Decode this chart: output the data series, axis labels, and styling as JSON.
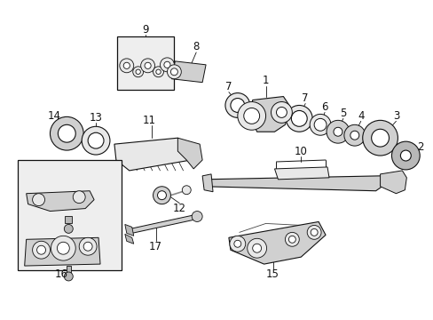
{
  "bg_color": "#ffffff",
  "fig_width": 4.89,
  "fig_height": 3.6,
  "dpi": 100,
  "label_fs": 8.5,
  "line_color": "#111111",
  "fill_light": "#e8e8e8",
  "fill_mid": "#d0d0d0",
  "fill_dark": "#b8b8b8",
  "box_fill": "#eeeeee"
}
